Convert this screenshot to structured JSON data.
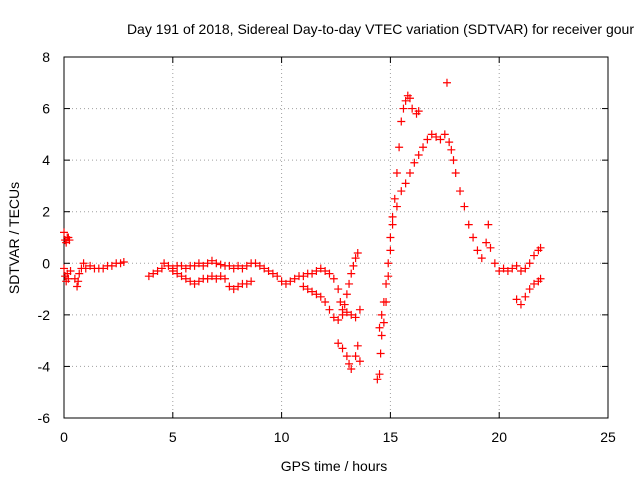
{
  "chart_data": {
    "type": "scatter",
    "title": "Day 191 of 2018, Sidereal Day-to-day VTEC variation (SDTVAR) for receiver gour",
    "xlabel": "GPS time / hours",
    "ylabel": "SDTVAR / TECUs",
    "xlim": [
      0,
      25
    ],
    "ylim": [
      -6,
      8
    ],
    "xticks": [
      0,
      5,
      10,
      15,
      20,
      25
    ],
    "yticks": [
      -6,
      -4,
      -2,
      0,
      2,
      4,
      6,
      8
    ],
    "grid": true,
    "marker": "+",
    "color": "#ff0000",
    "series": [
      {
        "name": "SDTVAR",
        "points": [
          [
            0.0,
            1.2
          ],
          [
            0.05,
            0.9
          ],
          [
            0.1,
            0.8
          ],
          [
            0.15,
            1.0
          ],
          [
            0.2,
            1.0
          ],
          [
            0.25,
            0.9
          ],
          [
            0.0,
            -0.2
          ],
          [
            0.05,
            -0.5
          ],
          [
            0.1,
            -0.7
          ],
          [
            0.15,
            -0.4
          ],
          [
            0.2,
            -0.6
          ],
          [
            0.3,
            -0.3
          ],
          [
            0.5,
            -0.6
          ],
          [
            0.6,
            -0.9
          ],
          [
            0.65,
            -0.7
          ],
          [
            0.7,
            -0.4
          ],
          [
            0.8,
            -0.2
          ],
          [
            0.9,
            0.0
          ],
          [
            1.0,
            -0.2
          ],
          [
            1.2,
            -0.1
          ],
          [
            1.4,
            -0.2
          ],
          [
            1.6,
            -0.2
          ],
          [
            1.8,
            -0.2
          ],
          [
            2.0,
            -0.1
          ],
          [
            2.2,
            -0.1
          ],
          [
            2.4,
            0.0
          ],
          [
            2.6,
            0.0
          ],
          [
            2.75,
            0.05
          ],
          [
            3.9,
            -0.5
          ],
          [
            4.1,
            -0.4
          ],
          [
            4.3,
            -0.3
          ],
          [
            4.5,
            -0.2
          ],
          [
            4.6,
            0.0
          ],
          [
            4.8,
            -0.1
          ],
          [
            5.0,
            -0.2
          ],
          [
            5.2,
            -0.1
          ],
          [
            5.4,
            -0.1
          ],
          [
            5.6,
            -0.2
          ],
          [
            5.8,
            -0.1
          ],
          [
            6.0,
            -0.1
          ],
          [
            6.2,
            0.0
          ],
          [
            6.4,
            -0.1
          ],
          [
            6.6,
            0.0
          ],
          [
            6.8,
            0.1
          ],
          [
            7.0,
            0.0
          ],
          [
            7.2,
            -0.05
          ],
          [
            7.4,
            -0.1
          ],
          [
            7.6,
            -0.1
          ],
          [
            7.8,
            -0.2
          ],
          [
            8.0,
            -0.1
          ],
          [
            8.2,
            -0.2
          ],
          [
            8.4,
            -0.1
          ],
          [
            8.6,
            0.0
          ],
          [
            8.8,
            0.0
          ],
          [
            9.0,
            -0.1
          ],
          [
            9.2,
            -0.2
          ],
          [
            5.0,
            -0.3
          ],
          [
            5.2,
            -0.4
          ],
          [
            5.4,
            -0.5
          ],
          [
            5.6,
            -0.6
          ],
          [
            5.8,
            -0.7
          ],
          [
            6.0,
            -0.8
          ],
          [
            6.2,
            -0.7
          ],
          [
            6.4,
            -0.6
          ],
          [
            6.6,
            -0.6
          ],
          [
            6.8,
            -0.5
          ],
          [
            7.0,
            -0.6
          ],
          [
            7.2,
            -0.5
          ],
          [
            7.4,
            -0.6
          ],
          [
            7.6,
            -0.9
          ],
          [
            7.8,
            -1.0
          ],
          [
            8.0,
            -0.9
          ],
          [
            8.2,
            -0.8
          ],
          [
            8.4,
            -0.8
          ],
          [
            8.6,
            -0.7
          ],
          [
            9.4,
            -0.3
          ],
          [
            9.6,
            -0.4
          ],
          [
            9.8,
            -0.5
          ],
          [
            10.0,
            -0.7
          ],
          [
            10.2,
            -0.8
          ],
          [
            10.4,
            -0.7
          ],
          [
            10.6,
            -0.6
          ],
          [
            10.8,
            -0.5
          ],
          [
            11.0,
            -0.5
          ],
          [
            11.2,
            -0.4
          ],
          [
            11.4,
            -0.4
          ],
          [
            11.6,
            -0.3
          ],
          [
            11.8,
            -0.2
          ],
          [
            12.0,
            -0.3
          ],
          [
            12.2,
            -0.4
          ],
          [
            12.4,
            -0.6
          ],
          [
            12.6,
            -1.0
          ],
          [
            12.7,
            -1.5
          ],
          [
            12.8,
            -1.8
          ],
          [
            12.9,
            -1.6
          ],
          [
            13.0,
            -1.2
          ],
          [
            13.1,
            -0.8
          ],
          [
            13.2,
            -0.4
          ],
          [
            13.3,
            -0.1
          ],
          [
            13.4,
            0.2
          ],
          [
            13.5,
            0.4
          ],
          [
            11.0,
            -0.9
          ],
          [
            11.2,
            -1.0
          ],
          [
            11.4,
            -1.1
          ],
          [
            11.6,
            -1.2
          ],
          [
            11.8,
            -1.3
          ],
          [
            12.0,
            -1.5
          ],
          [
            12.2,
            -1.8
          ],
          [
            12.4,
            -2.1
          ],
          [
            12.6,
            -2.2
          ],
          [
            12.8,
            -2.0
          ],
          [
            13.0,
            -1.9
          ],
          [
            13.2,
            -2.0
          ],
          [
            13.4,
            -2.1
          ],
          [
            13.6,
            -1.8
          ],
          [
            12.6,
            -3.1
          ],
          [
            12.8,
            -3.3
          ],
          [
            13.0,
            -3.6
          ],
          [
            13.1,
            -3.9
          ],
          [
            13.2,
            -4.1
          ],
          [
            13.4,
            -3.6
          ],
          [
            13.5,
            -3.2
          ],
          [
            13.6,
            -3.8
          ],
          [
            14.4,
            -4.5
          ],
          [
            14.5,
            -4.3
          ],
          [
            14.55,
            -3.5
          ],
          [
            14.6,
            -2.8
          ],
          [
            14.7,
            -2.3
          ],
          [
            14.8,
            -1.5
          ],
          [
            14.9,
            -0.5
          ],
          [
            15.0,
            0.5
          ],
          [
            15.1,
            1.5
          ],
          [
            15.2,
            2.5
          ],
          [
            15.3,
            3.5
          ],
          [
            15.4,
            4.5
          ],
          [
            15.5,
            5.5
          ],
          [
            15.6,
            6.0
          ],
          [
            15.7,
            6.3
          ],
          [
            15.8,
            6.5
          ],
          [
            15.9,
            6.4
          ],
          [
            16.0,
            6.0
          ],
          [
            16.2,
            5.8
          ],
          [
            16.3,
            5.9
          ],
          [
            14.5,
            -2.5
          ],
          [
            14.6,
            -2.0
          ],
          [
            14.7,
            -1.5
          ],
          [
            14.8,
            -0.8
          ],
          [
            14.9,
            0.0
          ],
          [
            15.0,
            1.0
          ],
          [
            15.1,
            1.8
          ],
          [
            15.3,
            2.2
          ],
          [
            15.5,
            2.8
          ],
          [
            15.7,
            3.1
          ],
          [
            15.9,
            3.5
          ],
          [
            16.1,
            3.9
          ],
          [
            16.3,
            4.2
          ],
          [
            16.5,
            4.5
          ],
          [
            16.7,
            4.8
          ],
          [
            16.9,
            5.0
          ],
          [
            17.1,
            4.9
          ],
          [
            17.3,
            4.8
          ],
          [
            17.5,
            5.0
          ],
          [
            17.7,
            4.7
          ],
          [
            17.8,
            4.4
          ],
          [
            17.9,
            4.0
          ],
          [
            18.0,
            3.5
          ],
          [
            18.2,
            2.8
          ],
          [
            18.4,
            2.2
          ],
          [
            18.6,
            1.5
          ],
          [
            18.8,
            1.0
          ],
          [
            19.0,
            0.5
          ],
          [
            19.2,
            0.2
          ],
          [
            19.4,
            0.8
          ],
          [
            19.5,
            1.5
          ],
          [
            19.6,
            0.6
          ],
          [
            19.8,
            0.0
          ],
          [
            20.0,
            -0.3
          ],
          [
            20.2,
            -0.2
          ],
          [
            20.4,
            -0.3
          ],
          [
            20.6,
            -0.2
          ],
          [
            20.8,
            -0.1
          ],
          [
            21.0,
            -0.3
          ],
          [
            21.2,
            -0.2
          ],
          [
            21.4,
            0.0
          ],
          [
            21.6,
            0.3
          ],
          [
            21.8,
            0.5
          ],
          [
            21.9,
            0.6
          ],
          [
            20.8,
            -1.4
          ],
          [
            21.0,
            -1.6
          ],
          [
            21.2,
            -1.3
          ],
          [
            21.4,
            -1.0
          ],
          [
            21.6,
            -0.8
          ],
          [
            21.8,
            -0.7
          ],
          [
            21.9,
            -0.6
          ],
          [
            17.6,
            7.0
          ]
        ]
      }
    ]
  }
}
